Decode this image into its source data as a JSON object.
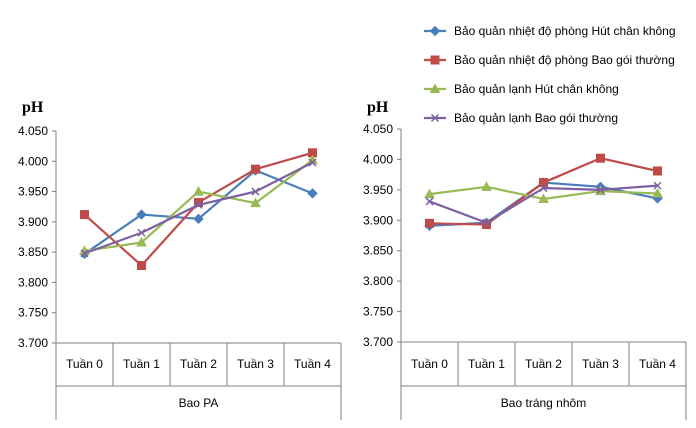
{
  "chart_data": [
    {
      "type": "line",
      "ylabel": "pH",
      "xlabel": "Bao PA",
      "categories": [
        "Tuần 0",
        "Tuần 1",
        "Tuần 2",
        "Tuần 3",
        "Tuần 4"
      ],
      "ylim": [
        3.7,
        4.05
      ],
      "yticks": [
        "3.700",
        "3.750",
        "3.800",
        "3.850",
        "3.900",
        "3.950",
        "4.000",
        "4.050"
      ],
      "grid": false,
      "series": [
        {
          "name": "Bảo quản nhiệt độ phòng Hút chân không",
          "values": [
            3.847,
            3.912,
            3.905,
            3.985,
            3.947
          ]
        },
        {
          "name": "Bảo quản nhiệt độ phòng Bao gói thường",
          "values": [
            3.912,
            3.828,
            3.932,
            3.987,
            4.014
          ]
        },
        {
          "name": "Bảo quản lạnh  Hút chân không",
          "values": [
            3.852,
            3.866,
            3.95,
            3.931,
            4.002
          ]
        },
        {
          "name": "Bảo quản lạnh  Bao gói thường",
          "values": [
            3.848,
            3.882,
            3.928,
            3.95,
            3.998
          ]
        }
      ]
    },
    {
      "type": "line",
      "ylabel": "pH",
      "xlabel": "Bao tráng nhôm",
      "categories": [
        "Tuần 0",
        "Tuần 1",
        "Tuần 2",
        "Tuần 3",
        "Tuần 4"
      ],
      "ylim": [
        3.7,
        4.05
      ],
      "yticks": [
        "3.700",
        "3.750",
        "3.800",
        "3.850",
        "3.900",
        "3.950",
        "4.000",
        "4.050"
      ],
      "grid": false,
      "series": [
        {
          "name": "Bảo quản nhiệt độ phòng Hút chân không",
          "values": [
            3.891,
            3.896,
            3.962,
            3.955,
            3.936
          ]
        },
        {
          "name": "Bảo quản nhiệt độ phòng Bao gói thường",
          "values": [
            3.895,
            3.893,
            3.962,
            4.002,
            3.981
          ]
        },
        {
          "name": "Bảo quản lạnh  Hút chân không",
          "values": [
            3.943,
            3.955,
            3.935,
            3.948,
            3.944
          ]
        },
        {
          "name": "Bảo quản lạnh  Bao gói thường",
          "values": [
            3.931,
            3.896,
            3.953,
            3.95,
            3.957
          ]
        }
      ]
    }
  ],
  "legend": {
    "placement": "top-right",
    "items": [
      {
        "label": "Bảo quản nhiệt độ phòng Hút chân không",
        "color": "#4a7ebb",
        "marker": "diamond"
      },
      {
        "label": "Bảo quản nhiệt độ phòng Bao gói thường",
        "color": "#be4b48",
        "marker": "square"
      },
      {
        "label": "Bảo quản lạnh  Hút chân không",
        "color": "#98b954",
        "marker": "triangle"
      },
      {
        "label": "Bảo quản lạnh  Bao gói thường",
        "color": "#7d60a0",
        "marker": "x"
      }
    ]
  }
}
